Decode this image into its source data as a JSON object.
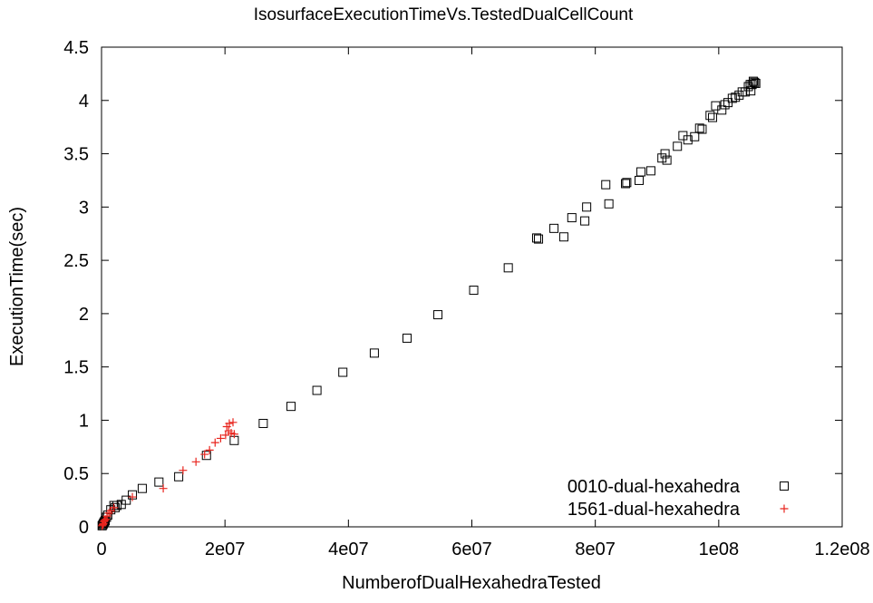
{
  "chart_data": {
    "type": "scatter",
    "title": "IsosurfaceExecutionTimeVs.TestedDualCellCount",
    "xlabel": "NumberofDualHexahedraTested",
    "ylabel": "ExecutionTime(sec)",
    "xlim": [
      0,
      120000000
    ],
    "ylim": [
      0,
      4.5
    ],
    "x_ticks": [
      0,
      20000000,
      40000000,
      60000000,
      80000000,
      100000000,
      120000000
    ],
    "x_tick_labels": [
      "0",
      "2e07",
      "4e07",
      "6e07",
      "8e07",
      "1e08",
      "1.2e08"
    ],
    "y_ticks": [
      0,
      0.5,
      1,
      1.5,
      2,
      2.5,
      3,
      3.5,
      4,
      4.5
    ],
    "y_tick_labels": [
      "0",
      "0.5",
      "1",
      "1.5",
      "2",
      "2.5",
      "3",
      "3.5",
      "4",
      "4.5"
    ],
    "grid": false,
    "legend_position": "bottom-right",
    "series": [
      {
        "name": "0010-dual-hexahedra",
        "marker": "square",
        "color": "#000000",
        "points": [
          [
            100000,
            0.01
          ],
          [
            200000,
            0.02
          ],
          [
            300000,
            0.03
          ],
          [
            400000,
            0.04
          ],
          [
            500000,
            0.05
          ],
          [
            600000,
            0.06
          ],
          [
            800000,
            0.09
          ],
          [
            1000000,
            0.11
          ],
          [
            1500000,
            0.16
          ],
          [
            2000000,
            0.2
          ],
          [
            2200000,
            0.18
          ],
          [
            2500000,
            0.2
          ],
          [
            3200000,
            0.21
          ],
          [
            4000000,
            0.25
          ],
          [
            5000000,
            0.3
          ],
          [
            6600000,
            0.36
          ],
          [
            9300000,
            0.42
          ],
          [
            12500000,
            0.47
          ],
          [
            17000000,
            0.67
          ],
          [
            21500000,
            0.81
          ],
          [
            26200000,
            0.97
          ],
          [
            30700000,
            1.13
          ],
          [
            34900000,
            1.28
          ],
          [
            39100000,
            1.45
          ],
          [
            44200000,
            1.63
          ],
          [
            49500000,
            1.77
          ],
          [
            54500000,
            1.99
          ],
          [
            60300000,
            2.22
          ],
          [
            65900000,
            2.43
          ],
          [
            70500000,
            2.71
          ],
          [
            70800000,
            2.7
          ],
          [
            73300000,
            2.8
          ],
          [
            74900000,
            2.72
          ],
          [
            76200000,
            2.9
          ],
          [
            78300000,
            2.87
          ],
          [
            78600000,
            3.0
          ],
          [
            81700000,
            3.21
          ],
          [
            82200000,
            3.03
          ],
          [
            84900000,
            3.22
          ],
          [
            85100000,
            3.23
          ],
          [
            87100000,
            3.25
          ],
          [
            87400000,
            3.33
          ],
          [
            89000000,
            3.34
          ],
          [
            90800000,
            3.46
          ],
          [
            91300000,
            3.5
          ],
          [
            91600000,
            3.44
          ],
          [
            93300000,
            3.57
          ],
          [
            94200000,
            3.67
          ],
          [
            95000000,
            3.63
          ],
          [
            96100000,
            3.66
          ],
          [
            96900000,
            3.74
          ],
          [
            97300000,
            3.73
          ],
          [
            98600000,
            3.86
          ],
          [
            99000000,
            3.84
          ],
          [
            99500000,
            3.95
          ],
          [
            100500000,
            3.91
          ],
          [
            101000000,
            3.96
          ],
          [
            101500000,
            3.98
          ],
          [
            102200000,
            4.02
          ],
          [
            102700000,
            4.03
          ],
          [
            103300000,
            4.05
          ],
          [
            103800000,
            4.08
          ],
          [
            104300000,
            4.08
          ],
          [
            104800000,
            4.13
          ],
          [
            105200000,
            4.09
          ],
          [
            105400000,
            4.15
          ],
          [
            105800000,
            4.17
          ],
          [
            106000000,
            4.16
          ],
          [
            105600000,
            4.18
          ],
          [
            105100000,
            4.15
          ]
        ]
      },
      {
        "name": "1561-dual-hexahedra",
        "marker": "plus",
        "color": "#e8251e",
        "points": [
          [
            100000,
            0.01
          ],
          [
            200000,
            0.02
          ],
          [
            300000,
            0.03
          ],
          [
            400000,
            0.05
          ],
          [
            500000,
            0.06
          ],
          [
            700000,
            0.07
          ],
          [
            900000,
            0.1
          ],
          [
            1200000,
            0.13
          ],
          [
            1500000,
            0.15
          ],
          [
            2000000,
            0.18
          ],
          [
            5000000,
            0.28
          ],
          [
            10000000,
            0.36
          ],
          [
            13200000,
            0.53
          ],
          [
            15300000,
            0.61
          ],
          [
            16700000,
            0.68
          ],
          [
            17500000,
            0.72
          ],
          [
            18400000,
            0.79
          ],
          [
            19300000,
            0.83
          ],
          [
            20100000,
            0.86
          ],
          [
            20300000,
            0.94
          ],
          [
            20600000,
            0.9
          ],
          [
            20700000,
            0.97
          ],
          [
            21000000,
            0.88
          ],
          [
            21300000,
            0.98
          ],
          [
            21500000,
            0.87
          ]
        ]
      }
    ]
  }
}
